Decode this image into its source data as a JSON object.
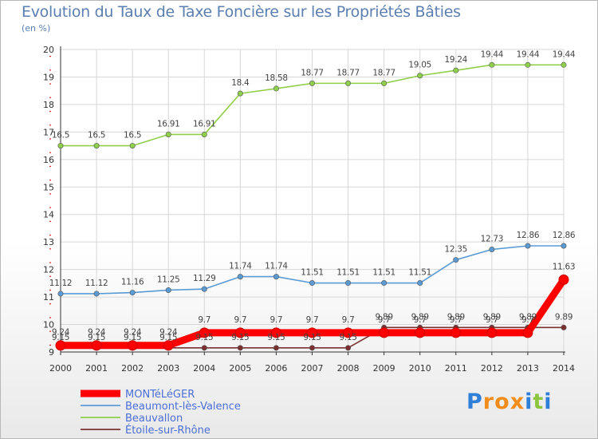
{
  "header": {
    "title": "Evolution du Taux de Taxe Foncière sur les Propriétés Bâties",
    "unit": "(en %)"
  },
  "logo": {
    "letters": [
      "P",
      "r",
      "o",
      "x",
      "i",
      "t",
      "i"
    ],
    "colors": [
      "#2f7fd9",
      "#f28c1b",
      "#f28c1b",
      "#f28c1b",
      "#2f7fd9",
      "#8cc63f",
      "#2f7fd9"
    ]
  },
  "colors": {
    "grid": "#d7d7d7",
    "axis": "#333333",
    "tick_dash": "#e0201b"
  },
  "chart_data": {
    "type": "line",
    "title": "Evolution du Taux de Taxe Foncière sur les Propriétés Bâties",
    "ylabel": "(en %)",
    "xlabel": "",
    "ylim": [
      9,
      20
    ],
    "yticks": [
      9,
      10,
      11,
      12,
      13,
      14,
      15,
      16,
      17,
      18,
      19,
      20
    ],
    "x": [
      "2000",
      "2001",
      "2002",
      "2003",
      "2004",
      "2005",
      "2006",
      "2007",
      "2008",
      "2009",
      "2010",
      "2011",
      "2012",
      "2013",
      "2014"
    ],
    "grid": true,
    "legend_position": "bottom-left",
    "series": [
      {
        "name": "MONTéLéGER",
        "color": "#ff0000",
        "values": [
          9.24,
          9.24,
          9.24,
          9.24,
          9.7,
          9.7,
          9.7,
          9.7,
          9.7,
          9.7,
          9.7,
          9.7,
          9.7,
          9.7,
          11.63
        ],
        "labels": [
          "9.24",
          "9.24",
          "9.24",
          "9.24",
          "9.7",
          "9.7",
          "9.7",
          "9.7",
          "9.7",
          "9.7",
          "9.7",
          "9.7",
          "9.7",
          "9.7",
          "11.63"
        ]
      },
      {
        "name": "Beaumont-lès-Valence",
        "color": "#5b9bd5",
        "values": [
          11.12,
          11.12,
          11.16,
          11.25,
          11.29,
          11.74,
          11.74,
          11.51,
          11.51,
          11.51,
          11.51,
          12.35,
          12.73,
          12.86,
          12.86
        ],
        "labels": [
          "11.12",
          "11.12",
          "11.16",
          "11.25",
          "11.29",
          "11.74",
          "11.74",
          "11.51",
          "11.51",
          "11.51",
          "11.51",
          "12.35",
          "12.73",
          "12.86",
          "12.86"
        ]
      },
      {
        "name": "Beauvallon",
        "color": "#8fcf4a",
        "values": [
          16.5,
          16.5,
          16.5,
          16.91,
          16.91,
          18.4,
          18.58,
          18.77,
          18.77,
          18.77,
          19.05,
          19.24,
          19.44,
          19.44,
          19.44
        ],
        "labels": [
          "16.5",
          "16.5",
          "16.5",
          "16.91",
          "16.91",
          "18.4",
          "18.58",
          "18.77",
          "18.77",
          "18.77",
          "19.05",
          "19.24",
          "19.44",
          "19.44",
          "19.44"
        ]
      },
      {
        "name": "Étoile-sur-Rhône",
        "color": "#7b3030",
        "values": [
          9.15,
          9.15,
          9.15,
          9.15,
          9.15,
          9.15,
          9.15,
          9.15,
          9.15,
          9.89,
          9.89,
          9.89,
          9.89,
          9.89,
          9.89
        ],
        "labels": [
          "9.15",
          "9.15",
          "9.15",
          "9.15",
          "9.15",
          "9.15",
          "9.15",
          "9.15",
          "9.15",
          "9.89",
          "9.89",
          "9.89",
          "9.89",
          "9.89",
          "9.89"
        ]
      }
    ]
  }
}
